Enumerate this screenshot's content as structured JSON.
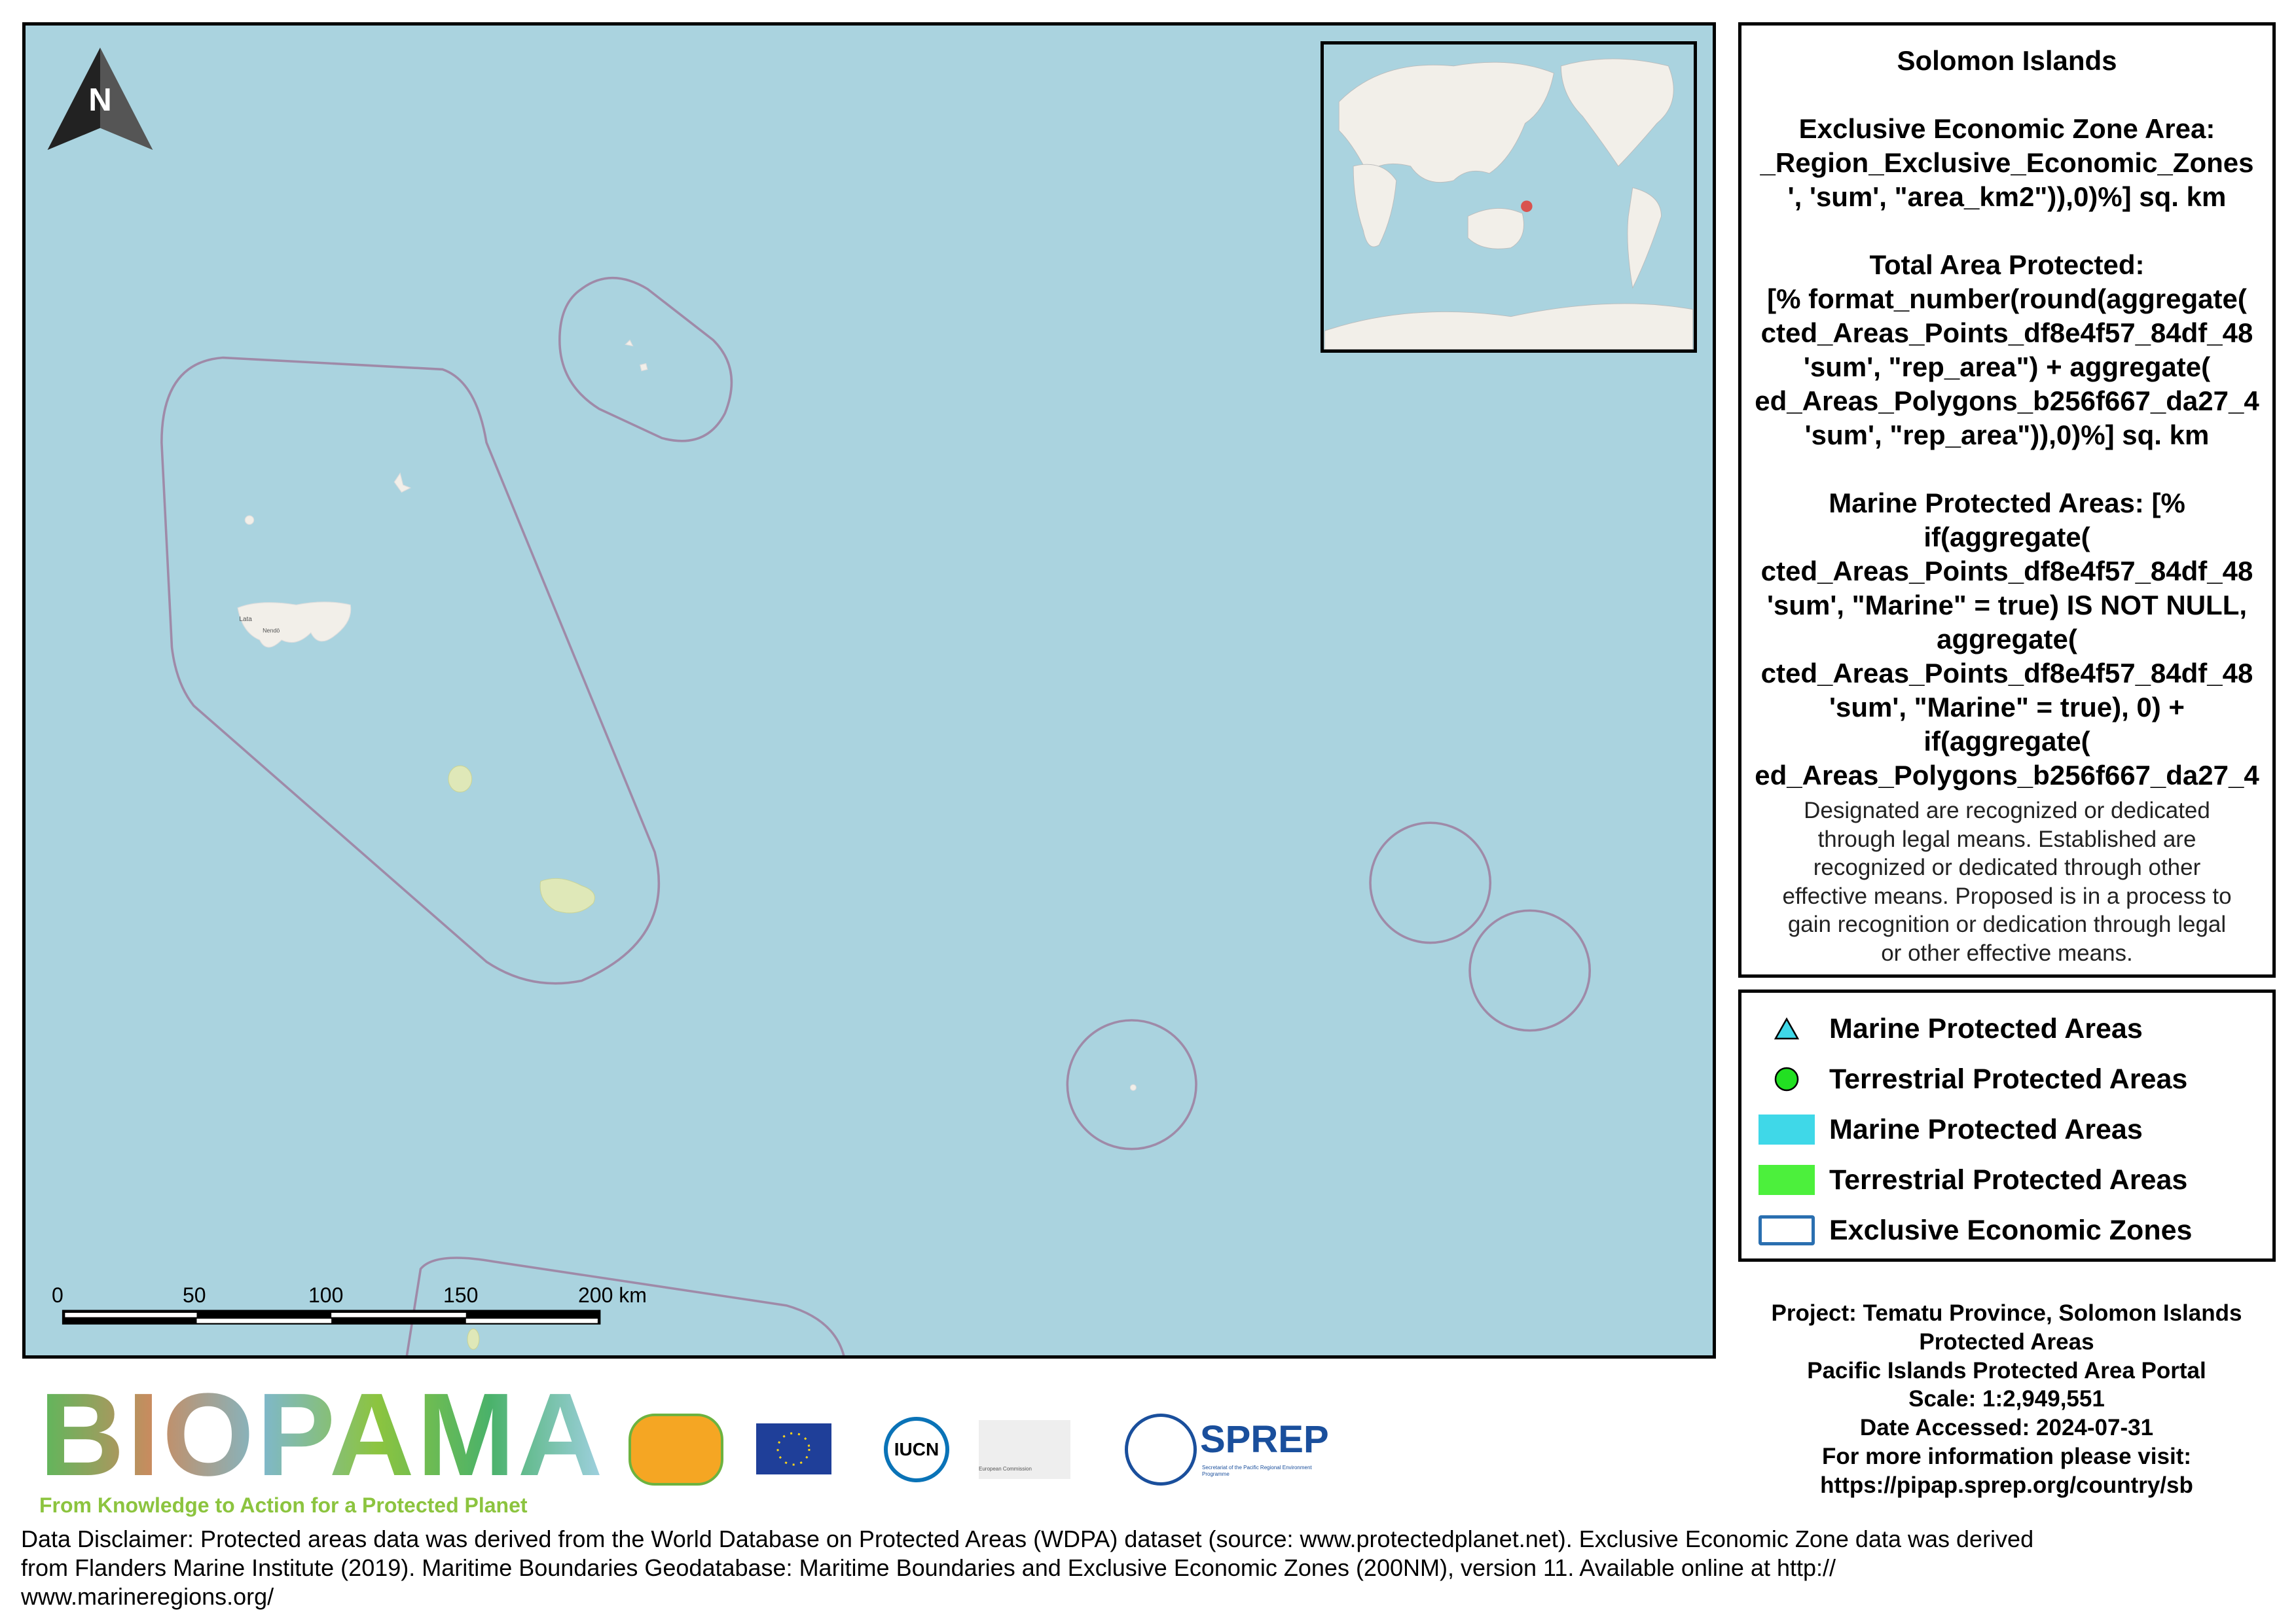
{
  "map": {
    "north_label": "N",
    "place_labels": [
      "Lata",
      "Nendö"
    ],
    "scale_bar": {
      "ticks": [
        "0",
        "50",
        "100",
        "150"
      ],
      "last_label": "200 km"
    },
    "colors": {
      "ocean": "#aad3df",
      "eez": "#9f8aa8",
      "land": "#f2efe9",
      "mpa_land": "#dfe8b8",
      "locator": "#d9534f"
    }
  },
  "panel": {
    "bold_lines": [
      "Solomon Islands",
      "",
      "Exclusive Economic Zone Area:",
      "_Region_Exclusive_Economic_Zones",
      "', 'sum', \"area_km2\")),0)%] sq. km",
      "",
      "Total Area Protected:",
      "[% format_number(round(aggregate(",
      "cted_Areas_Points_df8e4f57_84df_48",
      "'sum', \"rep_area\") + aggregate(",
      "ed_Areas_Polygons_b256f667_da27_4",
      "'sum', \"rep_area\")),0)%] sq. km",
      "",
      "Marine Protected Areas: [%",
      "if(aggregate(",
      "cted_Areas_Points_df8e4f57_84df_48",
      "'sum', \"Marine\" = true) IS NOT NULL,",
      "aggregate(",
      "cted_Areas_Points_df8e4f57_84df_48",
      "'sum', \"Marine\" = true), 0) +",
      "if(aggregate(",
      "ed_Areas_Polygons_b256f667_da27_4"
    ],
    "note_lines": [
      "Designated are recognized or dedicated",
      "through legal means. Established are",
      "recognized or dedicated through other",
      "effective means. Proposed is in a process to",
      "gain recognition or dedication through legal",
      "or other effective means."
    ]
  },
  "legend": {
    "items": [
      {
        "label": "Marine Protected Areas",
        "symbol": "triangle",
        "color": "#3fd8e8"
      },
      {
        "label": "Terrestrial Protected Areas",
        "symbol": "circle",
        "color": "#22e022"
      },
      {
        "label": "Marine Protected Areas",
        "symbol": "fill",
        "color": "#3fd8e8"
      },
      {
        "label": "Terrestrial Protected Areas",
        "symbol": "fill",
        "color": "#4cf03c"
      },
      {
        "label": "Exclusive Economic Zones",
        "symbol": "outline",
        "color": "#2a6fb0"
      }
    ]
  },
  "project": {
    "lines": [
      "Project: Tematu Province, Solomon Islands",
      "Protected Areas",
      "Pacific Islands Protected Area Portal",
      "Scale: 1:2,949,551",
      "Date Accessed: 2024-07-31",
      "For more information please visit:",
      "https://pipap.sprep.org/country/sb"
    ]
  },
  "logos": {
    "biopama": "BIOPAMA",
    "biopama_tagline": "From Knowledge to Action for a Protected Planet",
    "iucn": "IUCN",
    "sprep": "SPREP",
    "sprep_sub": "Secretariat of the Pacific Regional Environment Programme",
    "ec": "European Commission"
  },
  "disclaimer": {
    "lines": [
      "Data Disclaimer:  Protected areas data was derived from the World Database on Protected Areas (WDPA) dataset (source: www.protectedplanet.net).  Exclusive Economic Zone data was derived",
      "from Flanders Marine Institute (2019). Maritime Boundaries Geodatabase: Maritime Boundaries and Exclusive Economic Zones  (200NM), version 11. Available online at http://",
      "www.marineregions.org/"
    ]
  }
}
